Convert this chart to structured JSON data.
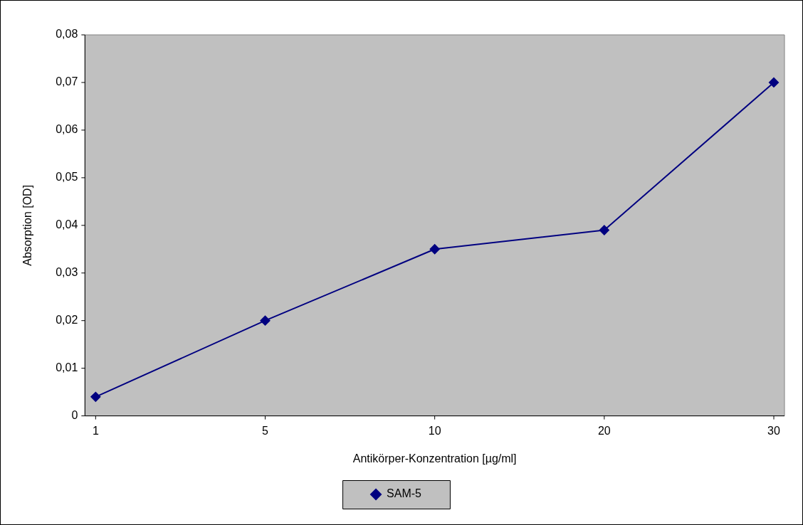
{
  "chart_data": {
    "type": "line",
    "xlabel": "Antikörper-Konzentration [µg/ml]",
    "ylabel": "Absorption [OD]",
    "categories": [
      "1",
      "5",
      "10",
      "20",
      "30"
    ],
    "series": [
      {
        "name": "SAM-5",
        "color": "#000080",
        "values": [
          0.004,
          0.02,
          0.035,
          0.039,
          0.07
        ]
      }
    ],
    "ylim": [
      0,
      0.08
    ],
    "yticks": [
      0,
      {
        "value": 0.01,
        "label": "0,01"
      },
      {
        "value": 0.02,
        "label": "0,02"
      },
      {
        "value": 0.03,
        "label": "0,03"
      },
      {
        "value": 0.04,
        "label": "0,04"
      },
      {
        "value": 0.05,
        "label": "0,05"
      },
      {
        "value": 0.06,
        "label": "0,06"
      },
      {
        "value": 0.07,
        "label": "0,07"
      },
      {
        "value": 0.08,
        "label": "0,08"
      }
    ],
    "grid": false,
    "legend": "bottom",
    "marker": "diamond",
    "line_style": "solid"
  }
}
